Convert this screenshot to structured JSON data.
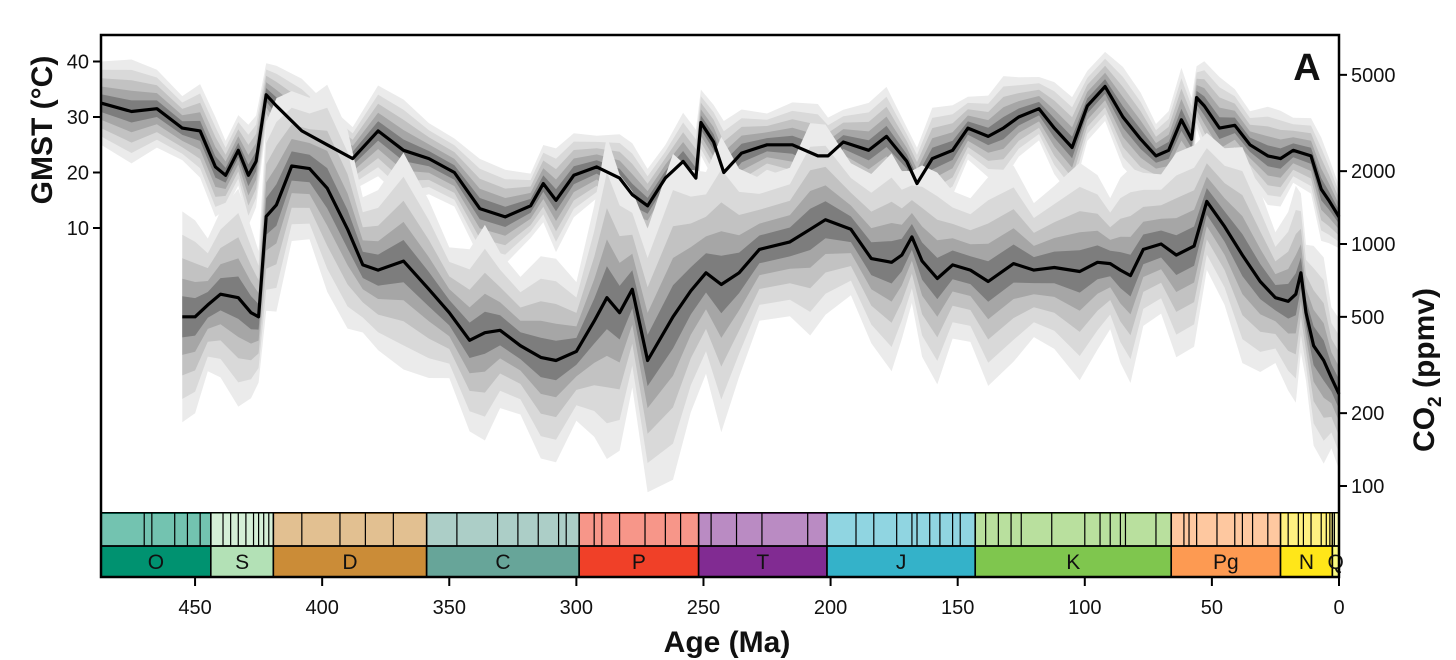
{
  "panel_label": "A",
  "chart_data": {
    "type": "line",
    "xlabel": "Age (Ma)",
    "xlim": [
      487,
      0
    ],
    "x_reversed": true,
    "x_ticks": [
      450,
      400,
      350,
      300,
      250,
      200,
      150,
      100,
      50,
      0
    ],
    "gmst_axis": {
      "label": "GMST (°C)",
      "ticks": [
        10,
        20,
        30,
        40
      ],
      "position": "left"
    },
    "co2_axis": {
      "label_main": "CO",
      "label_sub": "2",
      "label_units": " (ppmv)",
      "scale": "log",
      "ticks": [
        100,
        200,
        500,
        1000,
        2000,
        5000
      ],
      "tick_labels": [
        "100",
        "200",
        "500",
        "1000",
        "2000",
        "5000"
      ],
      "position": "right"
    },
    "uncertainty_bands": "nested percentile envelopes in grey shades",
    "series": [
      {
        "name": "GMST",
        "x": [
          487,
          475,
          465,
          455,
          448,
          442,
          438,
          433,
          429,
          426,
          422,
          418,
          408,
          398,
          388,
          378,
          368,
          358,
          348,
          338,
          328,
          318,
          313,
          308,
          301,
          292,
          283,
          278,
          272,
          265,
          258,
          253,
          251,
          246,
          242,
          235,
          225,
          215,
          205,
          201,
          195,
          185,
          178,
          170,
          166,
          160,
          152,
          146,
          138,
          132,
          126,
          118,
          112,
          105,
          99,
          92,
          85,
          78,
          72,
          67,
          62,
          58,
          56,
          53,
          47,
          41,
          35,
          28,
          23,
          18,
          11,
          7,
          4,
          0
        ],
        "y": [
          32.5,
          31,
          31.5,
          28,
          27.5,
          21,
          19.5,
          24,
          19.5,
          22,
          34,
          32,
          27.5,
          25,
          22.5,
          27.5,
          24,
          22.5,
          20,
          13.5,
          12,
          14,
          18,
          15,
          19.5,
          21,
          19,
          16,
          14,
          19,
          22,
          19,
          29,
          25.5,
          20,
          23.5,
          25,
          25,
          23,
          23,
          25.5,
          24,
          26.5,
          22,
          18,
          22.5,
          24,
          28,
          26.5,
          28,
          30,
          31.5,
          28,
          24.5,
          32,
          35.5,
          30,
          26,
          23,
          24,
          29.5,
          26,
          33.5,
          32,
          28,
          28.5,
          25,
          23,
          22.5,
          24,
          23,
          17,
          15,
          12
        ]
      },
      {
        "name": "CO2",
        "x": [
          455,
          450,
          445,
          440,
          433,
          428,
          425,
          422,
          418,
          412,
          405,
          398,
          390,
          384,
          378,
          368,
          358,
          350,
          342,
          336,
          330,
          322,
          314,
          308,
          300,
          293,
          288,
          283,
          278,
          272,
          262,
          255,
          249,
          243,
          236,
          228,
          216,
          208,
          202,
          192,
          184,
          176,
          172,
          168,
          164,
          158,
          152,
          145,
          138,
          128,
          120,
          112,
          102,
          95,
          90,
          86,
          82,
          77,
          70,
          64,
          57,
          52,
          45,
          38,
          31,
          25,
          20,
          17,
          15,
          13,
          10,
          6,
          3,
          0
        ],
        "y": [
          500,
          500,
          560,
          620,
          600,
          520,
          500,
          1300,
          1450,
          2100,
          2050,
          1700,
          1150,
          820,
          780,
          850,
          650,
          520,
          400,
          430,
          440,
          380,
          340,
          330,
          360,
          480,
          600,
          520,
          650,
          330,
          500,
          640,
          760,
          680,
          760,
          950,
          1020,
          1150,
          1260,
          1150,
          870,
          840,
          900,
          1070,
          850,
          720,
          820,
          780,
          700,
          830,
          780,
          800,
          770,
          840,
          830,
          780,
          740,
          950,
          1000,
          900,
          980,
          1500,
          1180,
          900,
          700,
          600,
          580,
          620,
          760,
          520,
          380,
          330,
          280,
          240
        ]
      }
    ],
    "timescale": {
      "periods": [
        {
          "label": "O",
          "start": 487,
          "end": 443.8,
          "color": "#009270"
        },
        {
          "label": "S",
          "start": 443.8,
          "end": 419.2,
          "color": "#b3e1b6"
        },
        {
          "label": "D",
          "start": 419.2,
          "end": 358.9,
          "color": "#cb8c37"
        },
        {
          "label": "C",
          "start": 358.9,
          "end": 298.9,
          "color": "#67a599"
        },
        {
          "label": "P",
          "start": 298.9,
          "end": 251.9,
          "color": "#f04028"
        },
        {
          "label": "T",
          "start": 251.9,
          "end": 201.4,
          "color": "#812b92"
        },
        {
          "label": "J",
          "start": 201.4,
          "end": 143.1,
          "color": "#34b2c9"
        },
        {
          "label": "K",
          "start": 143.1,
          "end": 66,
          "color": "#7fc64e"
        },
        {
          "label": "Pg",
          "start": 66,
          "end": 23,
          "color": "#fd9a52"
        },
        {
          "label": "N",
          "start": 23,
          "end": 2.6,
          "color": "#ffe619"
        },
        {
          "label": "Q",
          "start": 2.6,
          "end": 0,
          "color": "#f9f97f"
        }
      ],
      "stages_lines": [
        470,
        467,
        458,
        453,
        448,
        439,
        436,
        433,
        430,
        427,
        425,
        423,
        421,
        408,
        393,
        383,
        372,
        347,
        331,
        323,
        315,
        307,
        304,
        293,
        290,
        283,
        273,
        265,
        259,
        247,
        237,
        227,
        209,
        190,
        183,
        174,
        168,
        166,
        161,
        157,
        152,
        149,
        139,
        134,
        129,
        125,
        113,
        100,
        94,
        90,
        86,
        84,
        72,
        61,
        59,
        56,
        48,
        41,
        38,
        34,
        28,
        20,
        16,
        14,
        11,
        7,
        5,
        3.6,
        1.8
      ]
    }
  }
}
